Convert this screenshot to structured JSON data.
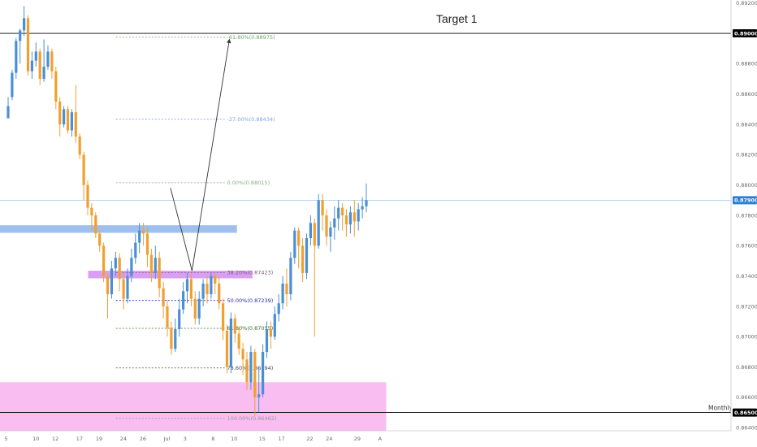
{
  "chart_data": {
    "type": "candlestick",
    "symbol_hint": "",
    "ylim": [
      0.8638,
      0.8922
    ],
    "y_ticks": [
      "0.89200",
      "0.89000",
      "0.88800",
      "0.88600",
      "0.88400",
      "0.88200",
      "0.88000",
      "0.87800",
      "0.87600",
      "0.87400",
      "0.87200",
      "0.87000",
      "0.86800",
      "0.86600",
      "0.86400"
    ],
    "x_ticks": [
      {
        "label": "5",
        "pos": 0.04
      },
      {
        "label": "10",
        "pos": 7.16
      },
      {
        "label": "12",
        "pos": 12.04
      },
      {
        "label": "17",
        "pos": 18.12
      },
      {
        "label": "19",
        "pos": 23.04
      },
      {
        "label": "24",
        "pos": 29.12
      },
      {
        "label": "26",
        "pos": 34.04
      },
      {
        "label": "Jul",
        "pos": 40.12
      },
      {
        "label": "3",
        "pos": 45.04
      },
      {
        "label": "8",
        "pos": 52.08
      },
      {
        "label": "10",
        "pos": 56.96
      },
      {
        "label": "15",
        "pos": 64.0
      },
      {
        "label": "17",
        "pos": 68.88
      },
      {
        "label": "22",
        "pos": 75.96
      },
      {
        "label": "24",
        "pos": 80.84
      },
      {
        "label": "29",
        "pos": 87.92
      },
      {
        "label": "A",
        "pos": 94.0
      }
    ],
    "candles": [
      [
        0.8844,
        0.8852,
        0.8846,
        0.8858
      ],
      [
        0.8858,
        0.8874,
        0.8856,
        0.8876
      ],
      [
        0.8874,
        0.8895,
        0.887,
        0.8897
      ],
      [
        0.8895,
        0.8902,
        0.888,
        0.8903
      ],
      [
        0.8902,
        0.891,
        0.8898,
        0.8918
      ],
      [
        0.891,
        0.8875,
        0.8872,
        0.8912
      ],
      [
        0.8875,
        0.8882,
        0.887,
        0.8888
      ],
      [
        0.8882,
        0.8888,
        0.8878,
        0.8894
      ],
      [
        0.8888,
        0.887,
        0.8866,
        0.889
      ],
      [
        0.887,
        0.8878,
        0.8868,
        0.8896
      ],
      [
        0.8878,
        0.8888,
        0.8876,
        0.8892
      ],
      [
        0.8888,
        0.8875,
        0.887,
        0.889
      ],
      [
        0.8875,
        0.8855,
        0.885,
        0.8878
      ],
      [
        0.8855,
        0.884,
        0.8832,
        0.8858
      ],
      [
        0.884,
        0.885,
        0.8838,
        0.8852
      ],
      [
        0.885,
        0.8836,
        0.8834,
        0.8852
      ],
      [
        0.8836,
        0.8848,
        0.8832,
        0.885
      ],
      [
        0.8848,
        0.8832,
        0.8828,
        0.8866
      ],
      [
        0.8832,
        0.882,
        0.8817,
        0.8834
      ],
      [
        0.882,
        0.88,
        0.879,
        0.8822
      ],
      [
        0.88,
        0.8785,
        0.878,
        0.8803
      ],
      [
        0.8785,
        0.878,
        0.877,
        0.8788
      ],
      [
        0.878,
        0.8768,
        0.8765,
        0.8782
      ],
      [
        0.8768,
        0.876,
        0.8756,
        0.877
      ],
      [
        0.876,
        0.874,
        0.8736,
        0.8762
      ],
      [
        0.874,
        0.8728,
        0.8712,
        0.8742
      ],
      [
        0.8728,
        0.8745,
        0.8725,
        0.875
      ],
      [
        0.8745,
        0.8752,
        0.874,
        0.8756
      ],
      [
        0.8752,
        0.8738,
        0.873,
        0.8755
      ],
      [
        0.8738,
        0.8725,
        0.8718,
        0.8742
      ],
      [
        0.8725,
        0.874,
        0.8722,
        0.8745
      ],
      [
        0.874,
        0.8752,
        0.8736,
        0.8758
      ],
      [
        0.8752,
        0.8762,
        0.8748,
        0.8768
      ],
      [
        0.8762,
        0.877,
        0.8755,
        0.8775
      ],
      [
        0.877,
        0.8768,
        0.876,
        0.8775
      ],
      [
        0.8768,
        0.8754,
        0.8746,
        0.8772
      ],
      [
        0.8754,
        0.8742,
        0.8736,
        0.8758
      ],
      [
        0.8742,
        0.8752,
        0.8738,
        0.876
      ],
      [
        0.8752,
        0.8732,
        0.8726,
        0.8756
      ],
      [
        0.8732,
        0.872,
        0.8712,
        0.8736
      ],
      [
        0.872,
        0.8706,
        0.87,
        0.8724
      ],
      [
        0.8706,
        0.8692,
        0.8688,
        0.871
      ],
      [
        0.8692,
        0.8705,
        0.869,
        0.8712
      ],
      [
        0.8705,
        0.8718,
        0.87,
        0.8725
      ],
      [
        0.8718,
        0.873,
        0.8715,
        0.8736
      ],
      [
        0.873,
        0.8738,
        0.8722,
        0.8742
      ],
      [
        0.8738,
        0.8725,
        0.872,
        0.8742
      ],
      [
        0.8725,
        0.8712,
        0.8708,
        0.873
      ],
      [
        0.8712,
        0.8725,
        0.8708,
        0.873
      ],
      [
        0.8725,
        0.8735,
        0.872,
        0.8738
      ],
      [
        0.8735,
        0.8728,
        0.8722,
        0.874
      ],
      [
        0.8728,
        0.874,
        0.8725,
        0.8742
      ],
      [
        0.874,
        0.8735,
        0.8728,
        0.8742
      ],
      [
        0.8735,
        0.8722,
        0.8718,
        0.874
      ],
      [
        0.8722,
        0.8704,
        0.8698,
        0.8725
      ],
      [
        0.8704,
        0.868,
        0.8676,
        0.8708
      ],
      [
        0.868,
        0.8712,
        0.8676,
        0.8716
      ],
      [
        0.8712,
        0.8702,
        0.8696,
        0.8715
      ],
      [
        0.8702,
        0.8692,
        0.8688,
        0.8706
      ],
      [
        0.8692,
        0.8685,
        0.8675,
        0.8696
      ],
      [
        0.8685,
        0.867,
        0.8665,
        0.869
      ],
      [
        0.867,
        0.869,
        0.8665,
        0.8694
      ],
      [
        0.869,
        0.866,
        0.8648,
        0.8692
      ],
      [
        0.866,
        0.8662,
        0.865,
        0.868
      ],
      [
        0.8662,
        0.869,
        0.866,
        0.8695
      ],
      [
        0.869,
        0.8705,
        0.8686,
        0.871
      ],
      [
        0.8705,
        0.87,
        0.8692,
        0.871
      ],
      [
        0.87,
        0.8715,
        0.8698,
        0.872
      ],
      [
        0.8715,
        0.8722,
        0.871,
        0.8728
      ],
      [
        0.8722,
        0.8735,
        0.8718,
        0.874
      ],
      [
        0.8735,
        0.8728,
        0.872,
        0.8745
      ],
      [
        0.8728,
        0.8752,
        0.8724,
        0.8756
      ],
      [
        0.8752,
        0.877,
        0.8748,
        0.8772
      ],
      [
        0.877,
        0.876,
        0.8745,
        0.8772
      ],
      [
        0.876,
        0.8742,
        0.8736,
        0.8765
      ],
      [
        0.8742,
        0.8765,
        0.8738,
        0.8768
      ],
      [
        0.8765,
        0.8775,
        0.876,
        0.878
      ],
      [
        0.8775,
        0.876,
        0.87,
        0.8778
      ],
      [
        0.876,
        0.879,
        0.8758,
        0.8794
      ],
      [
        0.879,
        0.878,
        0.877,
        0.8794
      ],
      [
        0.878,
        0.8766,
        0.876,
        0.8784
      ],
      [
        0.8766,
        0.8772,
        0.8756,
        0.8776
      ],
      [
        0.8772,
        0.8778,
        0.8764,
        0.8786
      ],
      [
        0.8778,
        0.8785,
        0.877,
        0.879
      ],
      [
        0.8785,
        0.878,
        0.877,
        0.8788
      ],
      [
        0.878,
        0.8774,
        0.8766,
        0.8784
      ],
      [
        0.8774,
        0.8782,
        0.8768,
        0.8786
      ],
      [
        0.8782,
        0.8776,
        0.8766,
        0.879
      ],
      [
        0.8776,
        0.8784,
        0.877,
        0.8788
      ],
      [
        0.8784,
        0.8786,
        0.8778,
        0.8792
      ],
      [
        0.8786,
        0.879,
        0.8782,
        0.8801
      ]
    ],
    "up_color": "#4a8fd6",
    "down_color": "#f0a030",
    "current_price": {
      "value": 0.879,
      "label": "0.87900",
      "color": "#2a7fd4"
    },
    "horizontal_lines": [
      {
        "value": 0.89,
        "label": "0.89000",
        "color": "#000000"
      },
      {
        "value": 0.865,
        "label": "0.86500",
        "color": "#000000",
        "note": "Monthly"
      }
    ],
    "zones": [
      {
        "name": "resistance-zone",
        "y1": 0.87735,
        "y2": 0.87685,
        "x1": 0,
        "x2": 57.5,
        "color": "#9fc0ee"
      },
      {
        "name": "fib-zone",
        "y1": 0.87435,
        "y2": 0.87385,
        "x1": 20.1,
        "x2": 61.4,
        "color": "#d89ff2"
      },
      {
        "name": "monthly-support-zone",
        "y1": 0.867,
        "y2": 0.8638,
        "x1": 0,
        "x2": 95.0,
        "color": "#f9bdf2"
      }
    ],
    "fib_levels": [
      {
        "label": "-61.80%(0.88975)",
        "value": 0.88975,
        "color": "#6aa66a"
      },
      {
        "label": "-27.00%(0.88434)",
        "value": 0.88434,
        "color": "#7aa6e0"
      },
      {
        "label": "0.00%(0.88015)",
        "value": 0.88015,
        "color": "#7fb27f"
      },
      {
        "label": "38.20%(0.87423)",
        "value": 0.87423,
        "color": "#7a5a7a"
      },
      {
        "label": "50.00%(0.87239)",
        "value": 0.87239,
        "color": "#2a2aa8"
      },
      {
        "label": "61.80%(0.87055)",
        "value": 0.87055,
        "color": "#3b6b2b"
      },
      {
        "label": "78.60%(0.86794)",
        "value": 0.86794,
        "color": "#444466"
      },
      {
        "label": "100.00%(0.86462)",
        "value": 0.86462,
        "color": "#999999"
      }
    ],
    "fib_x_range": [
      27.1,
      54.4
    ],
    "projection": [
      {
        "x": 40.8,
        "y": 0.8798
      },
      {
        "x": 46.2,
        "y": 0.87435
      },
      {
        "x": 55.6,
        "y": 0.8896
      }
    ],
    "annotations": {
      "target": "Target 1",
      "monthly": "Monthly"
    }
  }
}
